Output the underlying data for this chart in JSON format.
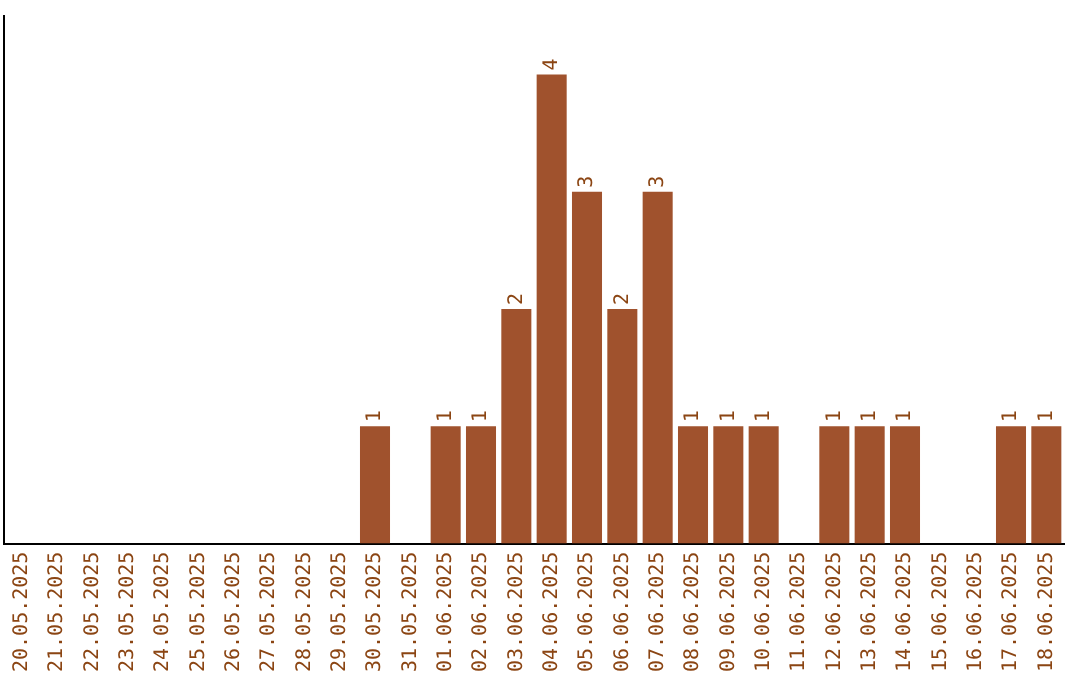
{
  "chart_data": {
    "type": "bar",
    "categories": [
      "20.05.2025",
      "21.05.2025",
      "22.05.2025",
      "23.05.2025",
      "24.05.2025",
      "25.05.2025",
      "26.05.2025",
      "27.05.2025",
      "28.05.2025",
      "29.05.2025",
      "30.05.2025",
      "31.05.2025",
      "01.06.2025",
      "02.06.2025",
      "03.06.2025",
      "04.06.2025",
      "05.06.2025",
      "06.06.2025",
      "07.06.2025",
      "08.06.2025",
      "09.06.2025",
      "10.06.2025",
      "11.06.2025",
      "12.06.2025",
      "13.06.2025",
      "14.06.2025",
      "15.06.2025",
      "16.06.2025",
      "17.06.2025",
      "18.06.2025"
    ],
    "values": [
      0,
      0,
      0,
      0,
      0,
      0,
      0,
      0,
      0,
      0,
      1,
      0,
      1,
      1,
      2,
      4,
      3,
      2,
      3,
      1,
      1,
      1,
      0,
      1,
      1,
      1,
      0,
      0,
      1,
      1
    ],
    "value_labels": [
      null,
      null,
      null,
      null,
      null,
      null,
      null,
      null,
      null,
      null,
      "1",
      null,
      "1",
      "1",
      "2",
      "4",
      "3",
      "2",
      "3",
      "1",
      "1",
      "1",
      null,
      "1",
      "1",
      "1",
      null,
      null,
      "1",
      "1"
    ],
    "color": "#a0522d",
    "tick_labels": "x",
    "grid": false,
    "legend": false
  }
}
